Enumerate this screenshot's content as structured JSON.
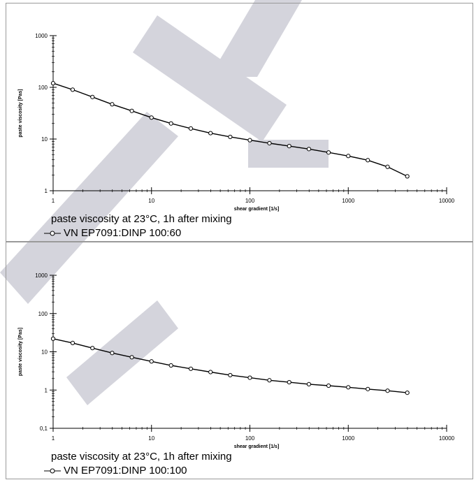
{
  "charts": [
    {
      "caption": "paste viscosity at 23°C, 1h after mixing",
      "legend_label": "VN EP7091:DINP 100:60"
    },
    {
      "caption": "paste viscosity at 23°C, 1h after mixing",
      "legend_label": "VN EP7091:DINP 100:100"
    }
  ],
  "colors": {
    "line": "#000000",
    "watermark": "#d4d4dc",
    "frame": "#9a9a9a"
  },
  "chart_data": [
    {
      "type": "line",
      "title": "",
      "xlabel": "shear gradient  [1/s]",
      "ylabel": "paste viscosity  [Pas]",
      "xscale": "log",
      "yscale": "log",
      "xlim": [
        1,
        10000
      ],
      "ylim": [
        1,
        1000
      ],
      "xticks": [
        1,
        10,
        100,
        1000,
        10000
      ],
      "xtick_labels": [
        "1",
        "10",
        "100",
        "1000",
        "10000"
      ],
      "yticks": [
        1,
        10,
        100,
        1000
      ],
      "ytick_labels": [
        "1",
        "10",
        "100",
        "1000"
      ],
      "grid": false,
      "series": [
        {
          "name": "VN EP7091:DINP 100:60",
          "x": [
            1,
            1.58,
            2.51,
            3.98,
            6.31,
            10,
            15.8,
            25.1,
            39.8,
            63.1,
            100,
            158,
            251,
            398,
            631,
            1000,
            1580,
            2510,
            3980
          ],
          "y": [
            120,
            90,
            65,
            47,
            35,
            26,
            20,
            16,
            13,
            11,
            9.5,
            8.3,
            7.3,
            6.4,
            5.5,
            4.7,
            3.9,
            2.9,
            1.9
          ]
        }
      ]
    },
    {
      "type": "line",
      "title": "",
      "xlabel": "shear gradient  [1/s]",
      "ylabel": "paste viscosity  [Pas]",
      "xscale": "log",
      "yscale": "log",
      "xlim": [
        1,
        10000
      ],
      "ylim": [
        0.1,
        1000
      ],
      "xticks": [
        1,
        10,
        100,
        1000,
        10000
      ],
      "xtick_labels": [
        "1",
        "10",
        "100",
        "1000",
        "10000"
      ],
      "yticks": [
        0.1,
        1,
        10,
        100,
        1000
      ],
      "ytick_labels": [
        "0,1",
        "1",
        "10",
        "100",
        "1000"
      ],
      "grid": false,
      "series": [
        {
          "name": "VN EP7091:DINP 100:100",
          "x": [
            1,
            1.58,
            2.51,
            3.98,
            6.31,
            10,
            15.8,
            25.1,
            39.8,
            63.1,
            100,
            158,
            251,
            398,
            631,
            1000,
            1580,
            2510,
            3980
          ],
          "y": [
            22,
            17,
            12.5,
            9.3,
            7.2,
            5.6,
            4.4,
            3.6,
            2.95,
            2.45,
            2.1,
            1.8,
            1.6,
            1.42,
            1.3,
            1.18,
            1.06,
            0.96,
            0.85
          ]
        }
      ]
    }
  ]
}
